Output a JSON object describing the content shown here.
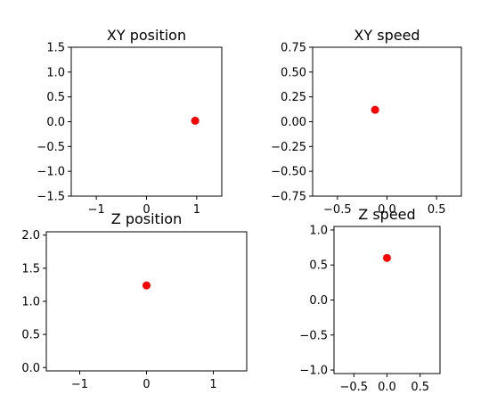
{
  "chart_data": [
    {
      "type": "scatter",
      "title": "XY position",
      "xlim": [
        -1.5,
        1.5
      ],
      "ylim": [
        -1.5,
        1.5
      ],
      "xticks": [
        -1,
        0,
        1
      ],
      "xtick_labels": [
        "−1",
        "0",
        "1"
      ],
      "yticks": [
        -1.5,
        -1.0,
        -0.5,
        0.0,
        0.5,
        1.0,
        1.5
      ],
      "ytick_labels": [
        "−1.5",
        "−1.0",
        "−0.5",
        "0.0",
        "0.5",
        "1.0",
        "1.5"
      ],
      "points": [
        {
          "x": 0.97,
          "y": 0.02
        }
      ],
      "marker_color": "#ff0000",
      "grid": false
    },
    {
      "type": "scatter",
      "title": "XY speed",
      "xlim": [
        -0.75,
        0.75
      ],
      "ylim": [
        -0.75,
        0.75
      ],
      "xticks": [
        -0.5,
        0.0,
        0.5
      ],
      "xtick_labels": [
        "−0.5",
        "0.0",
        "0.5"
      ],
      "yticks": [
        -0.75,
        -0.5,
        -0.25,
        0.0,
        0.25,
        0.5,
        0.75
      ],
      "ytick_labels": [
        "−0.75",
        "−0.50",
        "−0.25",
        "0.00",
        "0.25",
        "0.50",
        "0.75"
      ],
      "points": [
        {
          "x": -0.12,
          "y": 0.12
        }
      ],
      "marker_color": "#ff0000",
      "grid": false
    },
    {
      "type": "scatter",
      "title": "Z position",
      "xlim": [
        -1.5,
        1.5
      ],
      "ylim": [
        -0.05,
        2.05
      ],
      "xticks": [
        -1,
        0,
        1
      ],
      "xtick_labels": [
        "−1",
        "0",
        "1"
      ],
      "yticks": [
        0.0,
        0.5,
        1.0,
        1.5,
        2.0
      ],
      "ytick_labels": [
        "0.0",
        "0.5",
        "1.0",
        "1.5",
        "2.0"
      ],
      "points": [
        {
          "x": 0.0,
          "y": 1.24
        }
      ],
      "marker_color": "#ff0000",
      "grid": false
    },
    {
      "type": "scatter",
      "title": "Z speed",
      "xlim": [
        -0.8,
        0.8
      ],
      "ylim": [
        -1.05,
        1.05
      ],
      "xticks": [
        -0.5,
        0.0,
        0.5
      ],
      "xtick_labels": [
        "−0.5",
        "0.0",
        "0.5"
      ],
      "yticks": [
        -1.0,
        -0.5,
        0.0,
        0.5,
        1.0
      ],
      "ytick_labels": [
        "−1.0",
        "−0.5",
        "0.0",
        "0.5",
        "1.0"
      ],
      "points": [
        {
          "x": 0.0,
          "y": 0.6
        }
      ],
      "marker_color": "#ff0000",
      "grid": false
    }
  ]
}
